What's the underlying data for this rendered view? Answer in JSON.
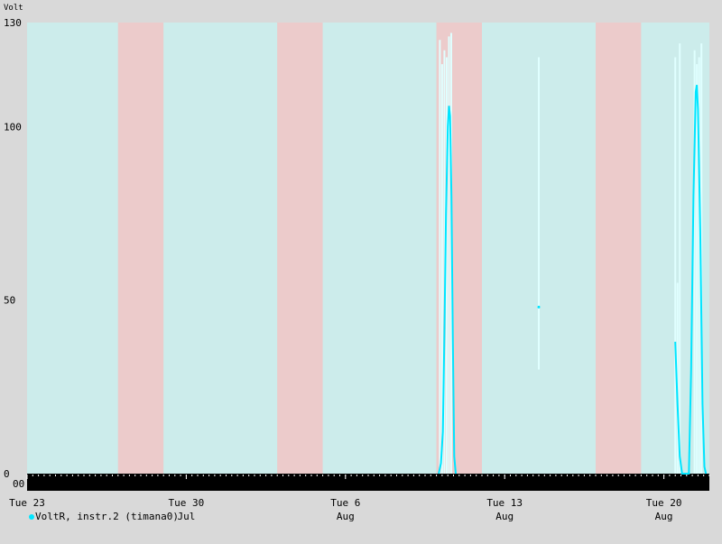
{
  "chart_data": {
    "type": "line",
    "ylabel": "Volt",
    "ylim": [
      0,
      130
    ],
    "y_ticks": [
      0,
      50,
      100,
      130
    ],
    "xlim_days": [
      0,
      30
    ],
    "x_ticks": [
      {
        "day": 0,
        "line1": "Tue 23",
        "line2": ""
      },
      {
        "day": 7,
        "line1": "Tue 30",
        "line2": "Jul"
      },
      {
        "day": 14,
        "line1": "Tue 6",
        "line2": "Aug"
      },
      {
        "day": 21,
        "line1": "Tue 13",
        "line2": "Aug"
      },
      {
        "day": 28,
        "line1": "Tue 20",
        "line2": "Aug"
      }
    ],
    "bands": [
      {
        "from": 0,
        "to": 4,
        "kind": "weekday"
      },
      {
        "from": 4,
        "to": 6,
        "kind": "weekend"
      },
      {
        "from": 6,
        "to": 11,
        "kind": "weekday"
      },
      {
        "from": 11,
        "to": 13,
        "kind": "weekend"
      },
      {
        "from": 13,
        "to": 18,
        "kind": "weekday"
      },
      {
        "from": 18,
        "to": 20,
        "kind": "weekend"
      },
      {
        "from": 20,
        "to": 25,
        "kind": "weekday"
      },
      {
        "from": 25,
        "to": 27,
        "kind": "weekend"
      },
      {
        "from": 27,
        "to": 30,
        "kind": "weekday"
      }
    ],
    "series": [
      {
        "name": "VoltR, instr.2 (timana0)",
        "color": "#00e5ff",
        "points": [
          [
            18.1,
            0
          ],
          [
            18.2,
            3
          ],
          [
            18.28,
            12
          ],
          [
            18.35,
            40
          ],
          [
            18.42,
            75
          ],
          [
            18.5,
            100
          ],
          [
            18.55,
            106
          ],
          [
            18.6,
            103
          ],
          [
            18.66,
            80
          ],
          [
            18.72,
            40
          ],
          [
            18.78,
            5
          ],
          [
            18.85,
            0
          ]
        ],
        "envelope": [
          [
            18.15,
            125
          ],
          [
            18.25,
            118
          ],
          [
            18.35,
            122
          ],
          [
            18.45,
            120
          ],
          [
            18.55,
            126
          ],
          [
            18.65,
            127
          ]
        ],
        "isolated": [
          {
            "x": 22.5,
            "y": 48,
            "min": 30,
            "max": 120
          }
        ],
        "points2": [
          [
            28.5,
            38
          ],
          [
            28.6,
            20
          ],
          [
            28.7,
            5
          ],
          [
            28.8,
            0
          ],
          [
            29.1,
            0
          ],
          [
            29.2,
            30
          ],
          [
            29.3,
            80
          ],
          [
            29.4,
            110
          ],
          [
            29.45,
            112
          ],
          [
            29.5,
            105
          ],
          [
            29.6,
            70
          ],
          [
            29.7,
            20
          ],
          [
            29.78,
            2
          ],
          [
            29.85,
            0
          ]
        ],
        "envelope2": [
          [
            28.5,
            120
          ],
          [
            28.6,
            55
          ],
          [
            28.7,
            124
          ],
          [
            29.35,
            122
          ],
          [
            29.45,
            118
          ],
          [
            29.55,
            120
          ],
          [
            29.65,
            124
          ]
        ]
      }
    ],
    "colors": {
      "weekday": "#cceceb",
      "weekend": "#eccbcb",
      "background": "#d9d9d9",
      "line": "#00e5ff",
      "envelope": "#e0ffff"
    }
  },
  "legend": {
    "label": "VoltR, instr.2 (timana0)"
  }
}
